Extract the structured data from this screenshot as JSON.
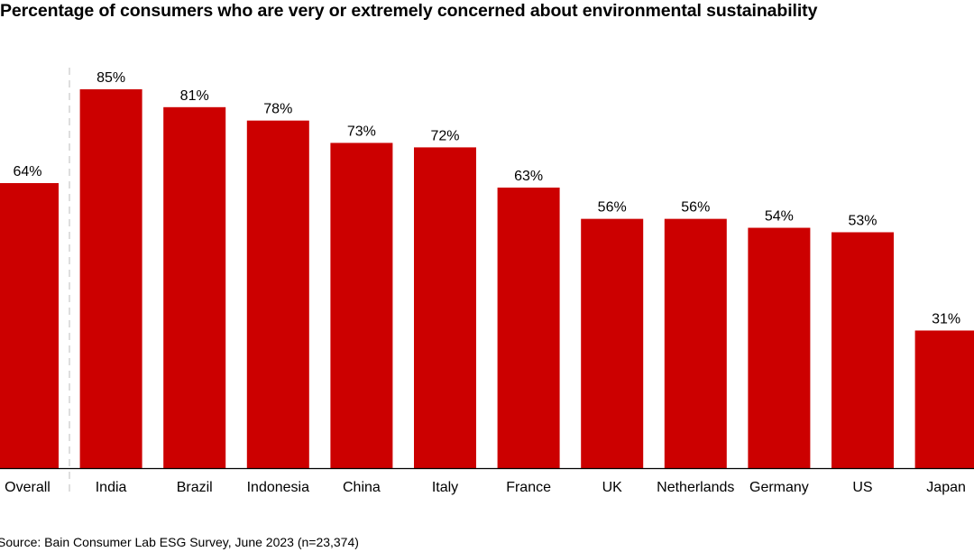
{
  "chart_data": {
    "type": "bar",
    "title": "Percentage of consumers who are very or extremely concerned about environmental sustainability",
    "categories": [
      "Overall",
      "India",
      "Brazil",
      "Indonesia",
      "China",
      "Italy",
      "France",
      "UK",
      "Netherlands",
      "Germany",
      "US",
      "Japan"
    ],
    "values": [
      64,
      85,
      81,
      78,
      73,
      72,
      63,
      56,
      56,
      54,
      53,
      31
    ],
    "data_labels": [
      "64%",
      "85%",
      "81%",
      "78%",
      "73%",
      "72%",
      "63%",
      "56%",
      "56%",
      "54%",
      "53%",
      "31%"
    ],
    "unit": "%",
    "ylim": [
      0,
      100
    ],
    "grid": false,
    "legend": "none",
    "separator_after": "Overall",
    "bar_color": "#cc0000",
    "source": "Source: Bain Consumer Lab ESG Survey, June 2023 (n=23,374)"
  }
}
